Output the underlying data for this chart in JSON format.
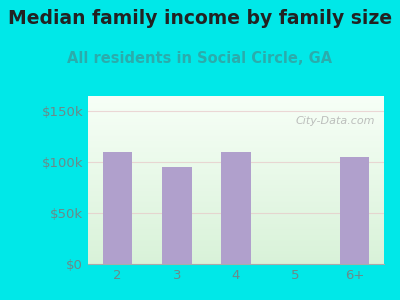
{
  "title": "Median family income by family size",
  "subtitle": "All residents in Social Circle, GA",
  "categories": [
    "2",
    "3",
    "4",
    "5",
    "6+"
  ],
  "values": [
    110000,
    95000,
    110000,
    0,
    105000
  ],
  "bar_color": "#b0a0cc",
  "title_color": "#222222",
  "subtitle_color": "#2aacac",
  "background_color": "#00e8e8",
  "plot_bg_color_topleft": "#e6f5e6",
  "plot_bg_color_topright": "#f8fdf8",
  "plot_bg_color_bottom": "#d8f0d8",
  "yticks": [
    0,
    50000,
    100000,
    150000
  ],
  "ytick_labels": [
    "$0",
    "$50k",
    "$100k",
    "$150k"
  ],
  "ylim": [
    0,
    165000
  ],
  "watermark": "City-Data.com",
  "title_fontsize": 13.5,
  "subtitle_fontsize": 10.5,
  "tick_fontsize": 9.5,
  "tick_color": "#6a8a8a"
}
